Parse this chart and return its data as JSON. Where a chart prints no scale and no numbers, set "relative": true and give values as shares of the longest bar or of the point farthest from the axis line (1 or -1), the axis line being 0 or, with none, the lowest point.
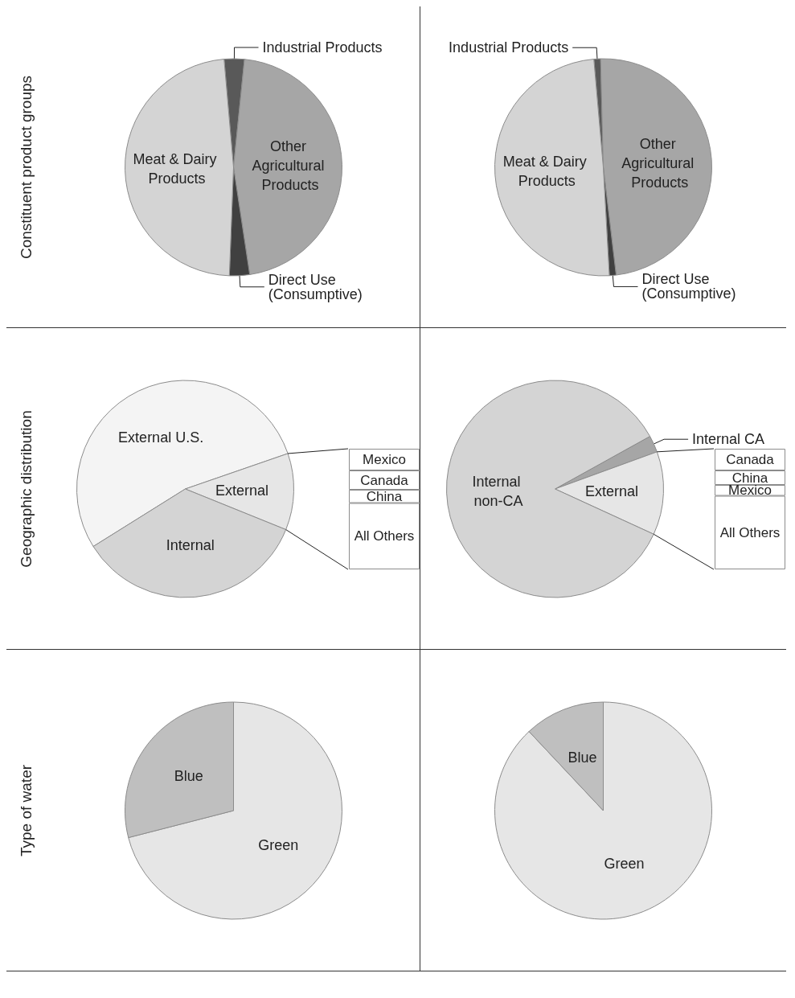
{
  "chart_data": [
    {
      "type": "pie",
      "ylabel": "Constituent product groups",
      "categories": [
        "Industrial Products",
        "Other Agricultural Products",
        "Direct Use (Consumptive)",
        "Meat & Dairy Products"
      ],
      "values": [
        3,
        46,
        3,
        48
      ],
      "colors": [
        "#595959",
        "#a6a6a6",
        "#404040",
        "#d4d4d4"
      ]
    },
    {
      "type": "pie",
      "categories": [
        "Industrial Products",
        "Other Agricultural Products",
        "Direct Use (Consumptive)",
        "Meat & Dairy Products"
      ],
      "values": [
        1,
        48.5,
        1,
        49.5
      ],
      "colors": [
        "#595959",
        "#a6a6a6",
        "#404040",
        "#d4d4d4"
      ]
    },
    {
      "type": "pie",
      "ylabel": "Geographic distribution",
      "categories": [
        "External U.S.",
        "External",
        "Internal"
      ],
      "values": [
        53.6,
        11.4,
        35
      ],
      "colors": [
        "#f4f4f4",
        "#e6e6e6",
        "#d4d4d4"
      ]
    },
    {
      "type": "bar",
      "stacked": true,
      "relative": true,
      "categories": [
        null
      ],
      "series": [
        {
          "name": "All Others",
          "color": "#ffffff",
          "values": [
            0.55
          ]
        },
        {
          "name": "China",
          "color": "#ffffff",
          "values": [
            0.11
          ]
        },
        {
          "name": "Canada",
          "color": "#ffffff",
          "values": [
            0.16
          ]
        },
        {
          "name": "Mexico",
          "color": "#ffffff",
          "values": [
            0.18
          ]
        }
      ]
    },
    {
      "type": "pie",
      "categories": [
        "Internal CA",
        "External",
        "Internal non-CA"
      ],
      "values": [
        2.5,
        12.4,
        85.1
      ],
      "colors": [
        "#a6a6a6",
        "#e6e6e6",
        "#d4d4d4"
      ]
    },
    {
      "type": "bar",
      "stacked": true,
      "relative": true,
      "categories": [
        null
      ],
      "series": [
        {
          "name": "All Others",
          "color": "#ffffff",
          "values": [
            0.61
          ]
        },
        {
          "name": "Mexico",
          "color": "#ffffff",
          "values": [
            0.09
          ]
        },
        {
          "name": "China",
          "color": "#ffffff",
          "values": [
            0.12
          ]
        },
        {
          "name": "Canada",
          "color": "#ffffff",
          "values": [
            0.18
          ]
        }
      ]
    },
    {
      "type": "pie",
      "ylabel": "Type of water",
      "categories": [
        "Green",
        "Blue"
      ],
      "values": [
        71,
        29
      ],
      "colors": [
        "#e6e6e6",
        "#bfbfbf"
      ]
    },
    {
      "type": "pie",
      "categories": [
        "Green",
        "Blue"
      ],
      "values": [
        88,
        12
      ],
      "colors": [
        "#e6e6e6",
        "#bfbfbf"
      ]
    }
  ]
}
